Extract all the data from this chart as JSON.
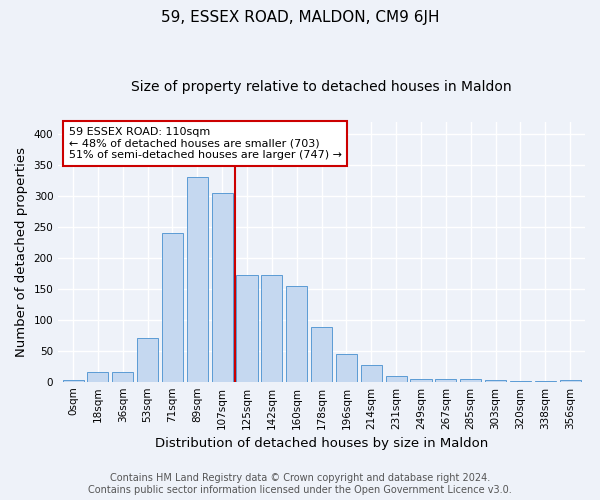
{
  "title": "59, ESSEX ROAD, MALDON, CM9 6JH",
  "subtitle": "Size of property relative to detached houses in Maldon",
  "xlabel": "Distribution of detached houses by size in Maldon",
  "ylabel": "Number of detached properties",
  "bar_labels": [
    "0sqm",
    "18sqm",
    "36sqm",
    "53sqm",
    "71sqm",
    "89sqm",
    "107sqm",
    "125sqm",
    "142sqm",
    "160sqm",
    "178sqm",
    "196sqm",
    "214sqm",
    "231sqm",
    "249sqm",
    "267sqm",
    "285sqm",
    "303sqm",
    "320sqm",
    "338sqm",
    "356sqm"
  ],
  "bar_values": [
    3,
    15,
    15,
    70,
    240,
    330,
    305,
    173,
    173,
    155,
    88,
    45,
    27,
    9,
    5,
    5,
    5,
    2,
    1,
    1,
    3
  ],
  "bar_color": "#c5d8f0",
  "bar_edge_color": "#5b9bd5",
  "property_line_x": 6.5,
  "annotation_text": "59 ESSEX ROAD: 110sqm\n← 48% of detached houses are smaller (703)\n51% of semi-detached houses are larger (747) →",
  "annotation_box_color": "#ffffff",
  "annotation_box_edge": "#cc0000",
  "vline_color": "#cc0000",
  "ylim": [
    0,
    420
  ],
  "yticks": [
    0,
    50,
    100,
    150,
    200,
    250,
    300,
    350,
    400
  ],
  "footer_line1": "Contains HM Land Registry data © Crown copyright and database right 2024.",
  "footer_line2": "Contains public sector information licensed under the Open Government Licence v3.0.",
  "bg_color": "#eef2f9",
  "grid_color": "#ffffff",
  "title_fontsize": 11,
  "subtitle_fontsize": 10,
  "axis_label_fontsize": 9.5,
  "tick_fontsize": 7.5,
  "footer_fontsize": 7
}
